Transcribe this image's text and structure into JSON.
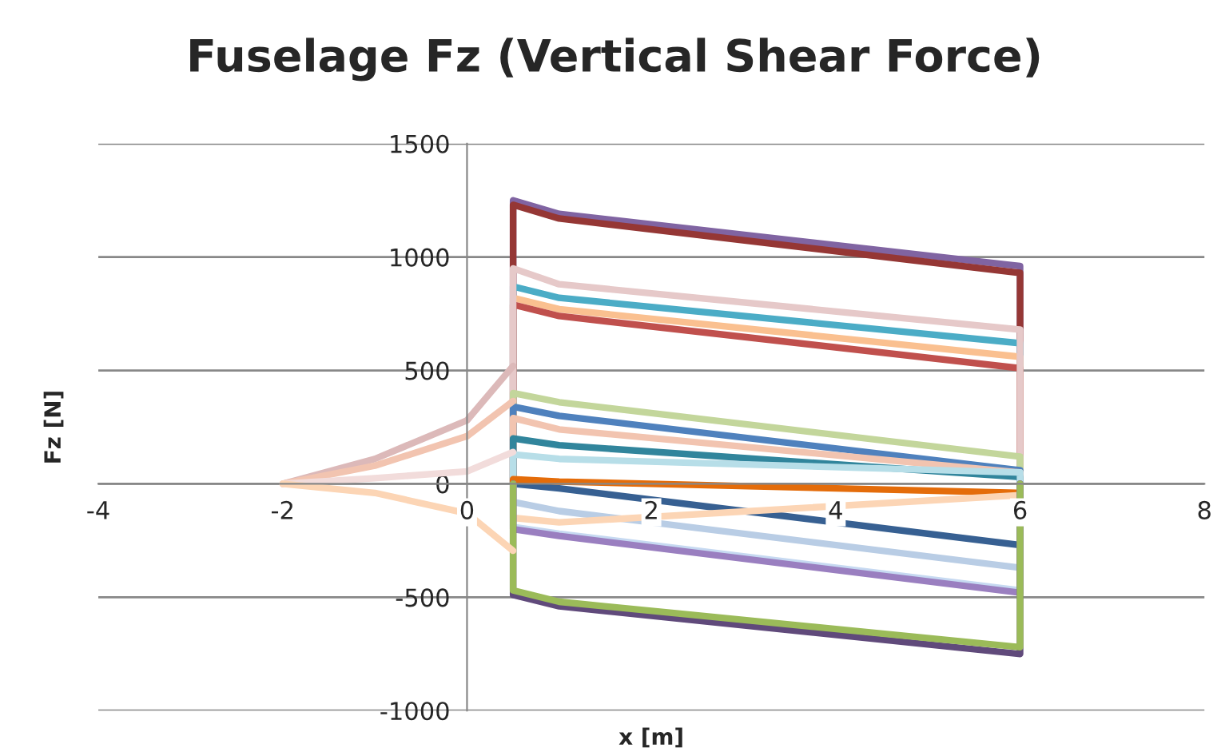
{
  "chart_data": {
    "type": "line",
    "title": "Fuselage Fz (Vertical Shear Force)",
    "xlabel": "x [m]",
    "ylabel": "Fz [N]",
    "xlim": [
      -4,
      8
    ],
    "xticks": [
      -4,
      -2,
      0,
      2,
      4,
      6,
      8
    ],
    "ylim": [
      -1000,
      1500
    ],
    "yticks": [
      -1000,
      -500,
      0,
      500,
      1000,
      1500
    ],
    "grid": "y",
    "legend": false,
    "marker": "none",
    "line_style": "solid",
    "series": [
      {
        "color": "#8064a2",
        "x": [
          0.5,
          0.5,
          1,
          6,
          6
        ],
        "values": [
          0,
          1250,
          1190,
          960,
          0
        ]
      },
      {
        "color": "#953735",
        "x": [
          0.5,
          0.5,
          1,
          6,
          6
        ],
        "values": [
          0,
          1230,
          1170,
          930,
          0
        ]
      },
      {
        "color": "#4bacc6",
        "x": [
          0.5,
          0.5,
          1,
          6,
          6
        ],
        "values": [
          0,
          870,
          820,
          620,
          0
        ]
      },
      {
        "color": "#fac090",
        "x": [
          0.5,
          0.5,
          1,
          6,
          6
        ],
        "values": [
          0,
          820,
          770,
          560,
          0
        ]
      },
      {
        "color": "#c0504d",
        "x": [
          0.5,
          0.5,
          1,
          6,
          6
        ],
        "values": [
          0,
          790,
          740,
          510,
          0
        ]
      },
      {
        "color": "#e6c9c9",
        "x": [
          0.5,
          0.5,
          1,
          6,
          6
        ],
        "values": [
          0,
          950,
          880,
          680,
          0
        ]
      },
      {
        "color": "#c3d69b",
        "x": [
          0.5,
          0.5,
          1,
          6,
          6
        ],
        "values": [
          0,
          400,
          360,
          120,
          0
        ]
      },
      {
        "color": "#4f81bd",
        "x": [
          0.5,
          0.5,
          1,
          6,
          6
        ],
        "values": [
          0,
          340,
          300,
          60,
          0
        ]
      },
      {
        "color": "#f2c4b0",
        "x": [
          0.5,
          0.5,
          1,
          6,
          6
        ],
        "values": [
          0,
          290,
          240,
          50,
          0
        ]
      },
      {
        "color": "#31859c",
        "x": [
          0.5,
          0.5,
          1,
          6,
          6
        ],
        "values": [
          0,
          200,
          170,
          30,
          0
        ]
      },
      {
        "color": "#b7dee8",
        "x": [
          0.5,
          0.5,
          1,
          6,
          6
        ],
        "values": [
          0,
          130,
          110,
          50,
          0
        ]
      },
      {
        "color": "#376092",
        "x": [
          0.5,
          0.5,
          1,
          6,
          6
        ],
        "values": [
          0,
          0,
          -20,
          -270,
          0
        ]
      },
      {
        "color": "#e46c0a",
        "x": [
          0.5,
          0.5,
          1,
          6,
          6
        ],
        "values": [
          0,
          20,
          10,
          -40,
          0
        ]
      },
      {
        "color": "#b9cde5",
        "x": [
          0.5,
          0.5,
          1,
          6,
          6
        ],
        "values": [
          0,
          -80,
          -120,
          -370,
          0
        ]
      },
      {
        "color": "#fcd5b5",
        "x": [
          0.5,
          0.5,
          1,
          6,
          6
        ],
        "values": [
          0,
          -150,
          -170,
          -50,
          0
        ]
      },
      {
        "color": "#c6d9f1",
        "x": [
          0.5,
          0.5,
          1,
          6,
          6
        ],
        "values": [
          0,
          -190,
          -220,
          -470,
          0
        ]
      },
      {
        "color": "#9a7fc0",
        "x": [
          0.5,
          0.5,
          1,
          6,
          6
        ],
        "values": [
          0,
          -200,
          -230,
          -480,
          0
        ]
      },
      {
        "color": "#604a7b",
        "x": [
          0.5,
          0.5,
          1,
          6,
          6
        ],
        "values": [
          0,
          -490,
          -540,
          -750,
          0
        ]
      },
      {
        "color": "#9bbb59",
        "x": [
          0.5,
          0.5,
          1,
          6,
          6
        ],
        "values": [
          0,
          -470,
          -520,
          -720,
          0
        ]
      },
      {
        "color": "#dcb9b9",
        "x": [
          -2,
          -1,
          0,
          0.5
        ],
        "values": [
          0,
          110,
          280,
          520
        ]
      },
      {
        "color": "#f2c4b0",
        "x": [
          -2,
          -1,
          0,
          0.5
        ],
        "values": [
          0,
          80,
          210,
          365
        ]
      },
      {
        "color": "#f2dcdb",
        "x": [
          -2,
          -1,
          0,
          0.5
        ],
        "values": [
          0,
          25,
          55,
          140
        ]
      },
      {
        "color": "#fcd5b5",
        "x": [
          -2,
          -1,
          0,
          0.5
        ],
        "values": [
          0,
          -40,
          -130,
          -295
        ]
      }
    ]
  }
}
